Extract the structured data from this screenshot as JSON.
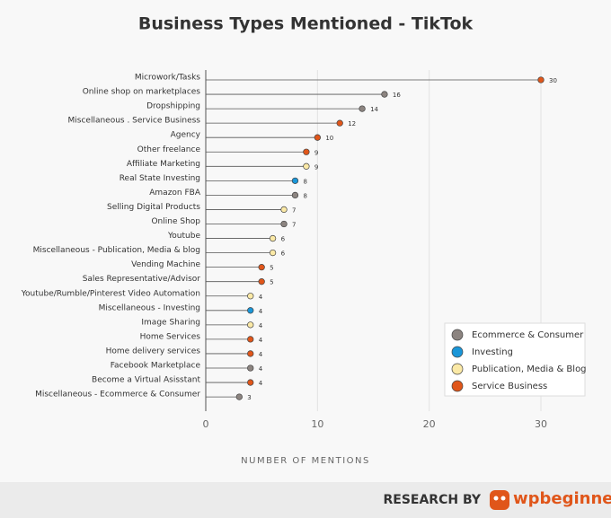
{
  "chart_data": {
    "type": "lollipop",
    "title": "Business Types Mentioned - TikTok",
    "x_label": "NUMBER OF MENTIONS",
    "categories": [
      "Microwork/Tasks",
      "Online shop on marketplaces",
      "Dropshipping",
      "Miscellaneous . Service Business",
      "Agency",
      "Other freelance",
      "Affiliate Marketing",
      "Real State Investing",
      "Amazon FBA",
      "Selling Digital Products",
      "Online Shop",
      "Youtube",
      "Miscellaneous - Publication, Media & blog",
      "Vending Machine",
      "Sales Representative/Advisor",
      "Youtube/Rumble/Pinterest Video Automation",
      "Miscellaneous - Investing",
      "Image Sharing",
      "Home Services",
      "Home delivery services",
      "Facebook Marketplace",
      "Become a Virtual Asisstant",
      "Miscellaneous - Ecommerce & Consumer"
    ],
    "series": [
      {
        "name": "Ecommerce & Consumer",
        "color": "#8c8480",
        "values": [
          null,
          16,
          14,
          null,
          null,
          null,
          null,
          null,
          8,
          null,
          7,
          null,
          null,
          null,
          null,
          null,
          null,
          null,
          null,
          null,
          4,
          null,
          3
        ]
      },
      {
        "name": "Investing",
        "color": "#1a96d8",
        "values": [
          null,
          null,
          null,
          null,
          null,
          null,
          null,
          8,
          null,
          null,
          null,
          null,
          null,
          null,
          null,
          null,
          4,
          null,
          null,
          null,
          null,
          null,
          null
        ]
      },
      {
        "name": "Publication, Media & Blog",
        "color": "#fbe9a6",
        "values": [
          null,
          null,
          null,
          null,
          null,
          null,
          9,
          null,
          null,
          7,
          null,
          6,
          6,
          null,
          null,
          4,
          null,
          4,
          null,
          null,
          null,
          null,
          null
        ]
      },
      {
        "name": "Service Business",
        "color": "#e0561a",
        "values": [
          30,
          null,
          null,
          12,
          10,
          9,
          null,
          null,
          null,
          null,
          null,
          null,
          null,
          5,
          5,
          null,
          null,
          null,
          4,
          4,
          null,
          4,
          null
        ]
      }
    ],
    "xlim": [
      0,
      30
    ],
    "xticks": [
      0,
      10,
      20,
      30
    ],
    "grid": true,
    "legend": "lower right"
  },
  "footer": {
    "research_by": "RESEARCH BY",
    "brand": "wpbeginner"
  }
}
